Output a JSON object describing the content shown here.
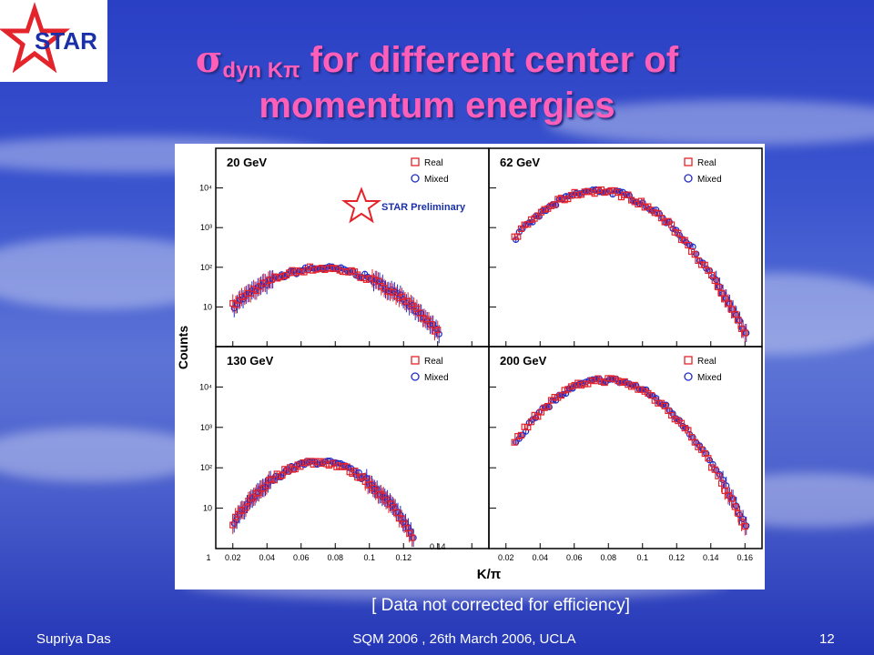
{
  "slide": {
    "title_sigma": "σ",
    "title_sub": "dyn Kπ",
    "title_line1_rest": " for different center of",
    "title_line2": "momentum energies",
    "logo_text": "STAR",
    "note": "[ Data not corrected for efficiency]",
    "footer_left": "Supriya Das",
    "footer_center": "SQM 2006 , 26th March 2006, UCLA",
    "footer_right": "12"
  },
  "figure": {
    "ylabel": "Counts",
    "xlabel": "K/π",
    "preliminary": "STAR Preliminary",
    "yticks": [
      {
        "v": 10,
        "label": "10"
      },
      {
        "v": 100,
        "label": "10²"
      },
      {
        "v": 1000,
        "label": "10³"
      },
      {
        "v": 10000,
        "label": "10⁴"
      }
    ],
    "xticks_left": [
      "1",
      "0.02",
      "0.04",
      "0.06",
      "0.08",
      "0.1",
      "0.12"
    ],
    "xtick_extra": "0.14",
    "xticks_right": [
      "0.02",
      "0.04",
      "0.06",
      "0.08",
      "0.1",
      "0.12",
      "0.14",
      "0.16"
    ]
  },
  "chart_data": {
    "type": "scatter",
    "y_scale": "log",
    "xlim": [
      0.01,
      0.17
    ],
    "ylim": [
      1,
      100000
    ],
    "legend_position": "top-right",
    "colors": {
      "real": "#e3242b",
      "mixed": "#1e2cc8"
    },
    "panels": [
      {
        "label": "20 GeV",
        "x_range": [
          0.02,
          0.14
        ],
        "peak_x": 0.072,
        "peak_y": 95,
        "width": 0.025,
        "series": [
          {
            "name": "Real",
            "marker": "square"
          },
          {
            "name": "Mixed",
            "marker": "circle"
          }
        ]
      },
      {
        "label": "62 GeV",
        "x_range": [
          0.025,
          0.16
        ],
        "peak_x": 0.074,
        "peak_y": 8500,
        "width": 0.021,
        "series": [
          {
            "name": "Real",
            "marker": "square"
          },
          {
            "name": "Mixed",
            "marker": "circle"
          }
        ]
      },
      {
        "label": "130 GeV",
        "x_range": [
          0.02,
          0.125
        ],
        "peak_x": 0.07,
        "peak_y": 140,
        "width": 0.019,
        "series": [
          {
            "name": "Real",
            "marker": "square"
          },
          {
            "name": "Mixed",
            "marker": "circle"
          }
        ]
      },
      {
        "label": "200 GeV",
        "x_range": [
          0.025,
          0.16
        ],
        "peak_x": 0.078,
        "peak_y": 15000,
        "width": 0.02,
        "series": [
          {
            "name": "Real",
            "marker": "square"
          },
          {
            "name": "Mixed",
            "marker": "circle"
          }
        ]
      }
    ]
  }
}
